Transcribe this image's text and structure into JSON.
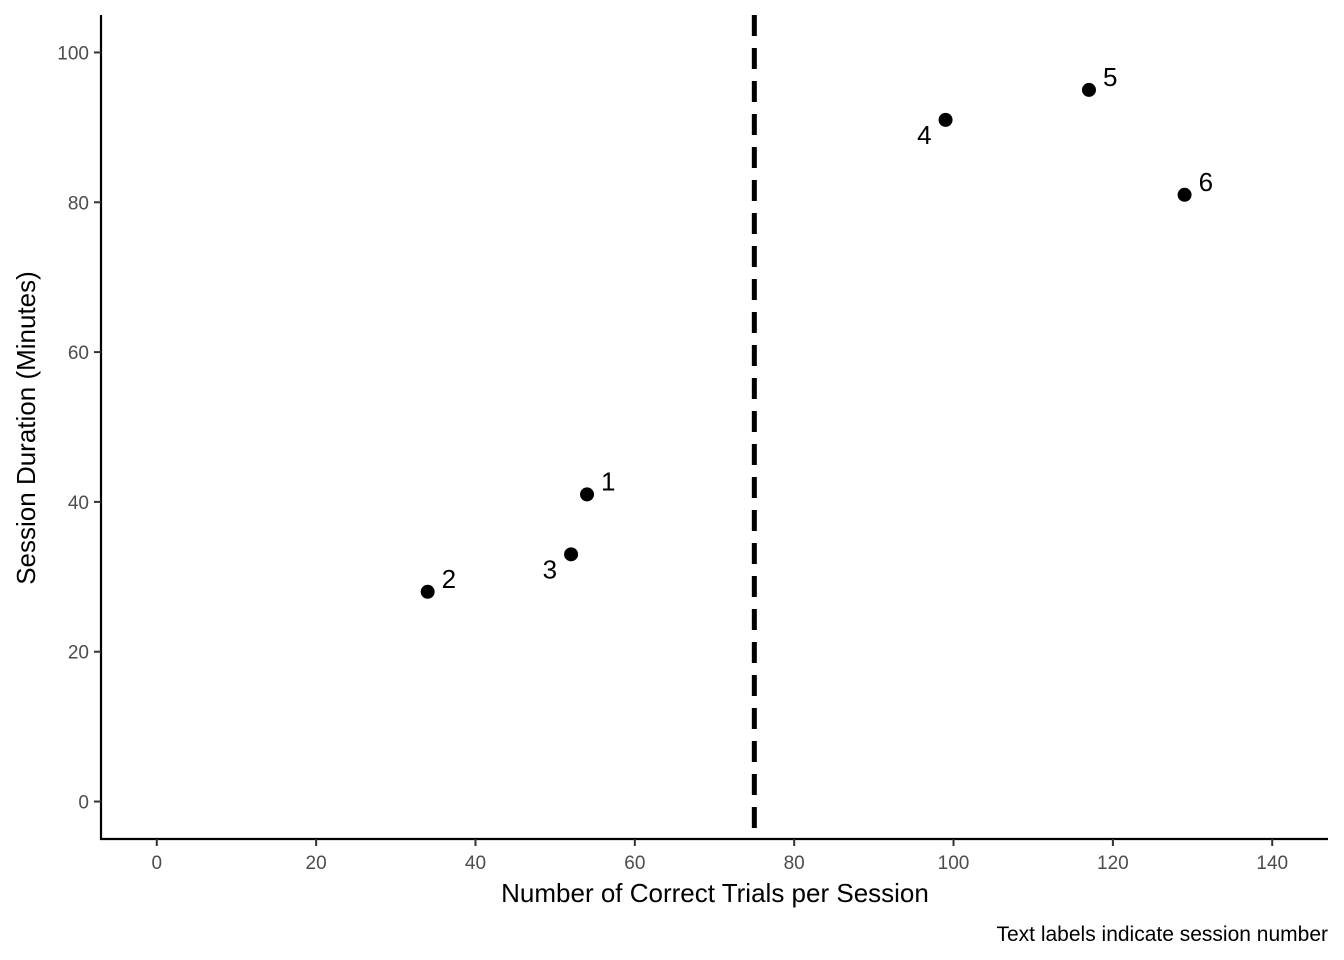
{
  "chart_data": {
    "type": "scatter",
    "xlabel": "Number of Correct Trials per Session",
    "ylabel": "Session Duration (Minutes)",
    "caption": "Text labels indicate session number",
    "xlim": [
      -7,
      147
    ],
    "ylim": [
      -5,
      105
    ],
    "x_ticks": [
      0,
      20,
      40,
      60,
      80,
      100,
      120,
      140
    ],
    "y_ticks": [
      0,
      20,
      40,
      60,
      80,
      100
    ],
    "grid": false,
    "reference_line": {
      "orientation": "vertical",
      "x": 75,
      "style": "dashed",
      "color": "#000000"
    },
    "points": [
      {
        "label": "1",
        "x": 54,
        "y": 41,
        "label_side": "right"
      },
      {
        "label": "2",
        "x": 34,
        "y": 28,
        "label_side": "right"
      },
      {
        "label": "3",
        "x": 52,
        "y": 33,
        "label_side": "left"
      },
      {
        "label": "4",
        "x": 99,
        "y": 91,
        "label_side": "left"
      },
      {
        "label": "5",
        "x": 117,
        "y": 95,
        "label_side": "right"
      },
      {
        "label": "6",
        "x": 129,
        "y": 81,
        "label_side": "right"
      }
    ],
    "point_color": "#000000"
  }
}
